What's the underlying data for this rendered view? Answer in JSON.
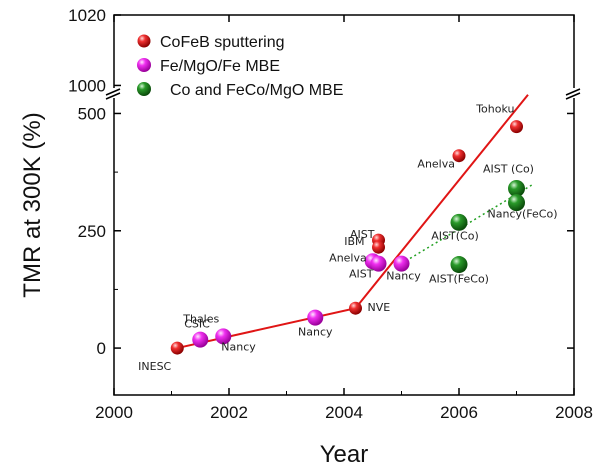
{
  "chart_data": {
    "type": "scatter",
    "xlabel": "Year",
    "ylabel": "TMR at 300K (%)",
    "xlim": [
      2000,
      2008
    ],
    "x_ticks": [
      "2000",
      "2002",
      "2004",
      "2006",
      "2008"
    ],
    "ylim_lower": [
      -100,
      550
    ],
    "y_ticks_lower": [
      "0",
      "250",
      "500"
    ],
    "ylim_upper": [
      997,
      1020
    ],
    "y_ticks_upper": [
      "1000",
      "1020"
    ],
    "axis_break": "between 550 and 997",
    "legend_placement": "top-left",
    "series": [
      {
        "name": "CoFeB sputtering",
        "color": "#e01515",
        "points": [
          {
            "x": 2001.1,
            "y": 0,
            "label": "INESC"
          },
          {
            "x": 2004.2,
            "y": 85,
            "label": "NVE"
          },
          {
            "x": 2004.6,
            "y": 230,
            "label": "AIST"
          },
          {
            "x": 2004.6,
            "y": 215,
            "label": "IBM"
          },
          {
            "x": 2006.0,
            "y": 410,
            "label": "Anelva"
          },
          {
            "x": 2007.0,
            "y": 472,
            "label": "Tohoku"
          }
        ]
      },
      {
        "name": "Fe/MgO/Fe MBE",
        "color": "#e81ae8",
        "points": [
          {
            "x": 2001.5,
            "y": 18,
            "label": "CSIC"
          },
          {
            "x": 2001.9,
            "y": 25,
            "label": "Thales"
          },
          {
            "x": 2001.9,
            "y": 25,
            "label": "Nancy"
          },
          {
            "x": 2003.5,
            "y": 65,
            "label": "Nancy"
          },
          {
            "x": 2004.5,
            "y": 185,
            "label": "Anelva"
          },
          {
            "x": 2004.6,
            "y": 180,
            "label": "AIST"
          },
          {
            "x": 2005.0,
            "y": 180,
            "label": "Nancy"
          }
        ]
      },
      {
        "name": "Co and FeCo/MgO MBE",
        "color": "#1a8a1a",
        "points": [
          {
            "x": 2006.0,
            "y": 268,
            "label": "AIST(Co)"
          },
          {
            "x": 2006.0,
            "y": 178,
            "label": "AIST(FeCo)"
          },
          {
            "x": 2007.0,
            "y": 340,
            "label": "AIST (Co)"
          },
          {
            "x": 2007.0,
            "y": 310,
            "label": "Nancy(FeCo)"
          }
        ]
      }
    ],
    "trend_lines": [
      {
        "style": "solid",
        "color": "#e01515",
        "points": [
          [
            2001.1,
            0
          ],
          [
            2004.2,
            85
          ],
          [
            2007.2,
            540
          ]
        ]
      },
      {
        "style": "dotted",
        "color": "#22a022",
        "points": [
          [
            2005.0,
            180
          ],
          [
            2007.3,
            350
          ]
        ]
      }
    ]
  }
}
